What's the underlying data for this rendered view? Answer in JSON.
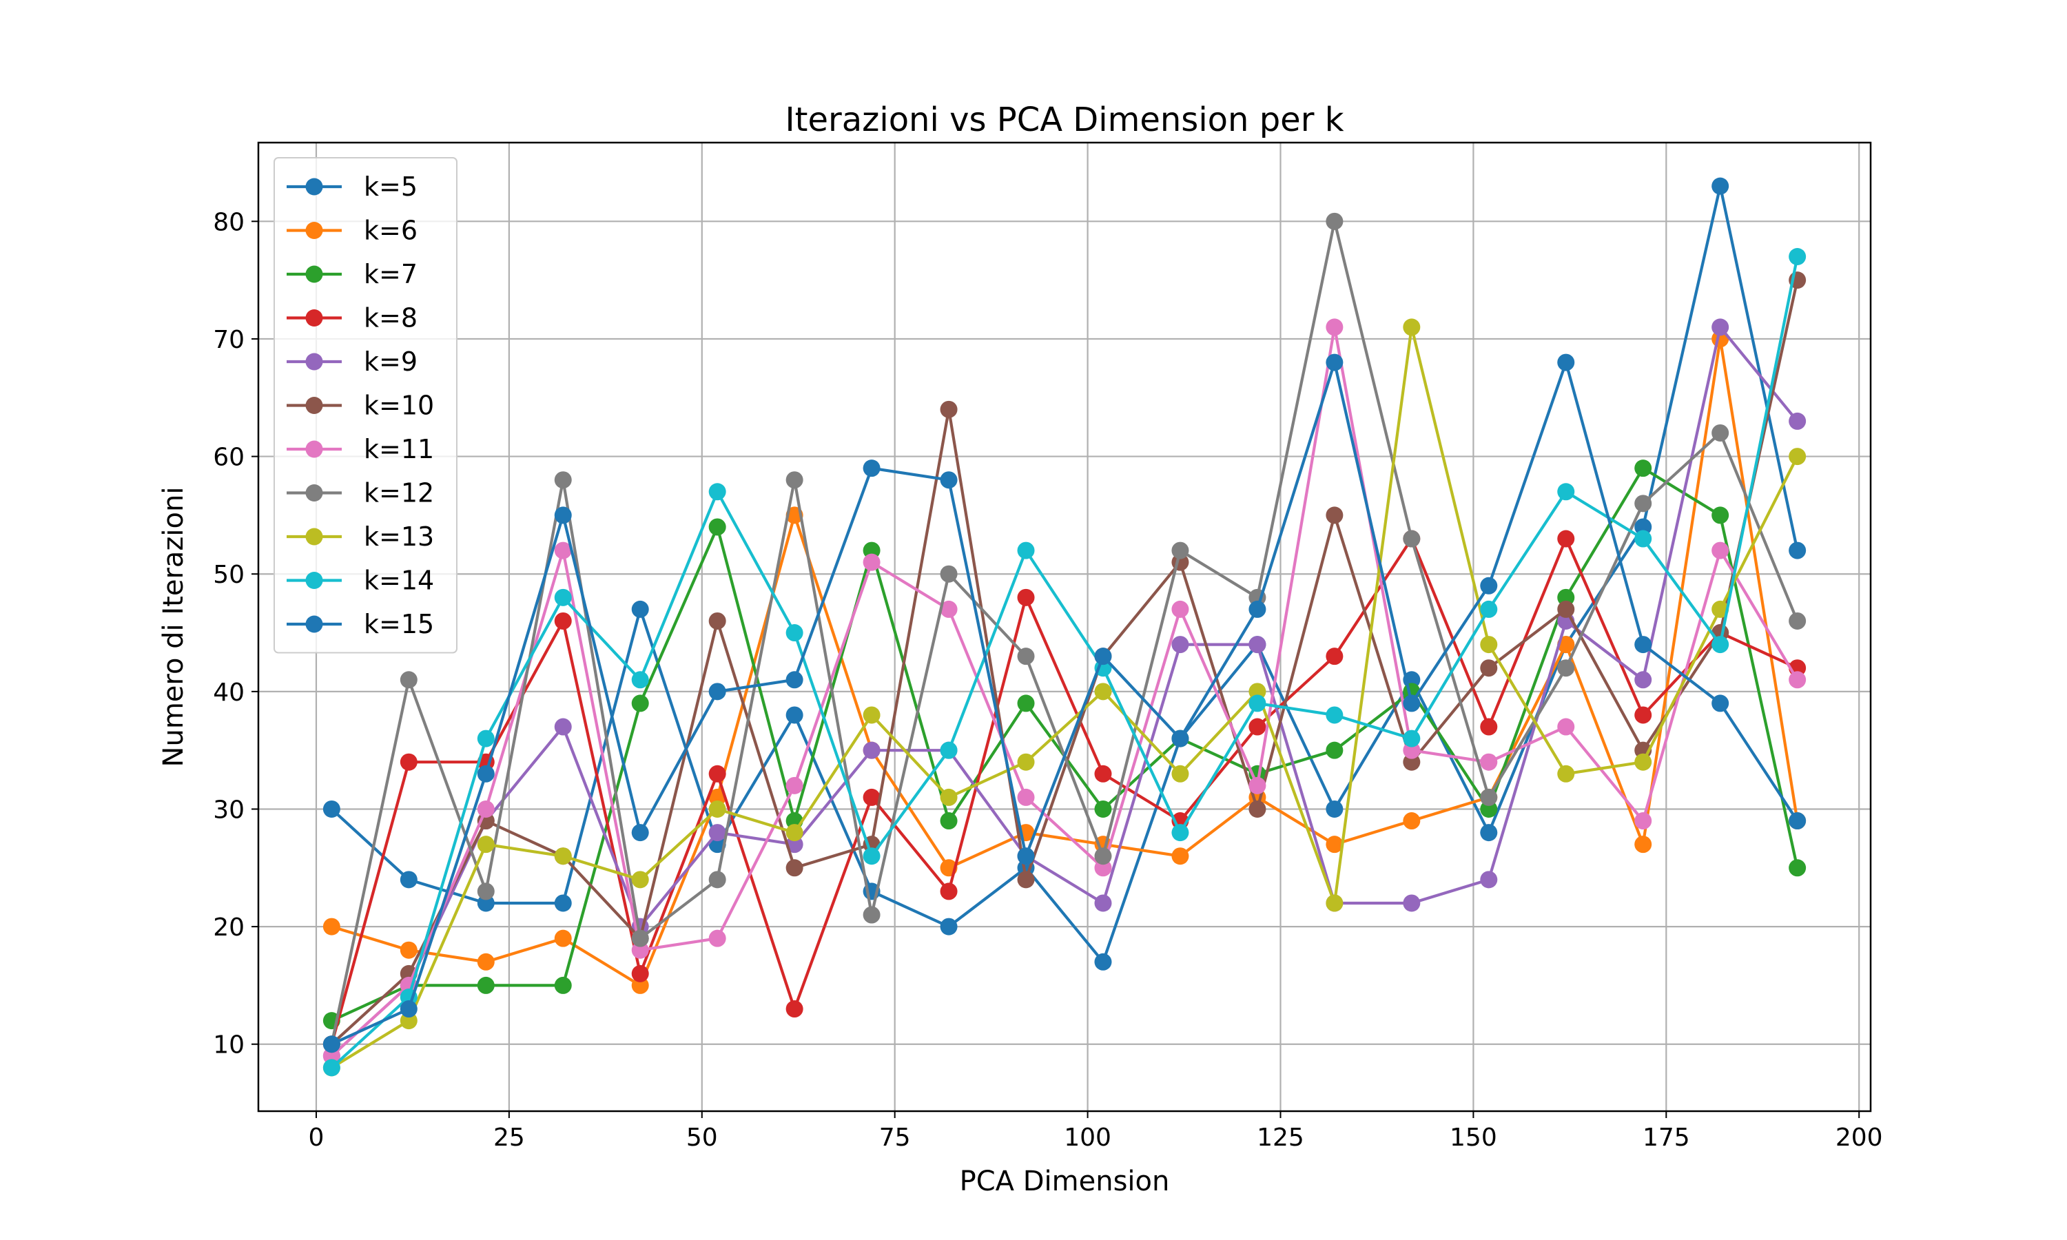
{
  "chart_data": {
    "type": "line",
    "title": "Iterazioni vs PCA Dimension per k",
    "xlabel": "PCA Dimension",
    "ylabel": "Numero di Iterazioni",
    "xlim": [
      -7.5,
      201.5
    ],
    "ylim": [
      4.3,
      86.7
    ],
    "xticks": [
      0,
      25,
      50,
      75,
      100,
      125,
      150,
      175,
      200
    ],
    "yticks": [
      10,
      20,
      30,
      40,
      50,
      60,
      70,
      80
    ],
    "grid": true,
    "legend_position": "upper-left",
    "x": [
      2,
      12,
      22,
      32,
      42,
      52,
      62,
      72,
      82,
      92,
      102,
      112,
      122,
      132,
      142,
      152,
      162,
      172,
      182,
      192
    ],
    "series": [
      {
        "name": "k=5",
        "color": "#1f77b4",
        "values": [
          30,
          24,
          22,
          22,
          47,
          27,
          38,
          23,
          20,
          25,
          17,
          36,
          44,
          30,
          41,
          28,
          44,
          54,
          83,
          52
        ]
      },
      {
        "name": "k=6",
        "color": "#ff7f0e",
        "values": [
          20,
          18,
          17,
          19,
          15,
          31,
          55,
          35,
          25,
          28,
          27,
          26,
          31,
          27,
          29,
          31,
          44,
          27,
          70,
          29
        ]
      },
      {
        "name": "k=7",
        "color": "#2ca02c",
        "values": [
          12,
          15,
          15,
          15,
          39,
          54,
          29,
          52,
          29,
          39,
          30,
          36,
          33,
          35,
          40,
          30,
          48,
          59,
          55,
          25
        ]
      },
      {
        "name": "k=8",
        "color": "#d62728",
        "values": [
          10,
          34,
          34,
          46,
          16,
          33,
          13,
          31,
          23,
          48,
          33,
          29,
          37,
          43,
          53,
          37,
          53,
          38,
          45,
          42
        ]
      },
      {
        "name": "k=9",
        "color": "#9467bd",
        "values": [
          9,
          15,
          29,
          37,
          20,
          28,
          27,
          35,
          35,
          26,
          22,
          44,
          44,
          22,
          22,
          24,
          46,
          41,
          71,
          63
        ]
      },
      {
        "name": "k=10",
        "color": "#8c564b",
        "values": [
          10,
          16,
          29,
          26,
          19,
          46,
          25,
          27,
          64,
          24,
          43,
          51,
          30,
          55,
          34,
          42,
          47,
          35,
          45,
          75
        ]
      },
      {
        "name": "k=11",
        "color": "#e377c2",
        "values": [
          9,
          15,
          30,
          52,
          18,
          19,
          32,
          51,
          47,
          31,
          25,
          47,
          32,
          71,
          35,
          34,
          37,
          29,
          52,
          41
        ]
      },
      {
        "name": "k=12",
        "color": "#7f7f7f",
        "values": [
          10,
          41,
          23,
          58,
          19,
          24,
          58,
          21,
          50,
          43,
          26,
          52,
          48,
          80,
          53,
          31,
          42,
          56,
          62,
          46
        ]
      },
      {
        "name": "k=13",
        "color": "#bcbd22",
        "values": [
          8,
          12,
          27,
          26,
          24,
          30,
          28,
          38,
          31,
          34,
          40,
          33,
          40,
          22,
          71,
          44,
          33,
          34,
          47,
          60
        ]
      },
      {
        "name": "k=14",
        "color": "#17becf",
        "values": [
          8,
          14,
          36,
          48,
          41,
          57,
          45,
          26,
          35,
          52,
          42,
          28,
          39,
          38,
          36,
          47,
          57,
          53,
          44,
          77
        ]
      },
      {
        "name": "k=15",
        "color": "#1f77b4",
        "values": [
          10,
          13,
          33,
          55,
          28,
          40,
          41,
          59,
          58,
          26,
          43,
          36,
          47,
          68,
          39,
          49,
          68,
          44,
          39,
          29
        ]
      }
    ]
  }
}
